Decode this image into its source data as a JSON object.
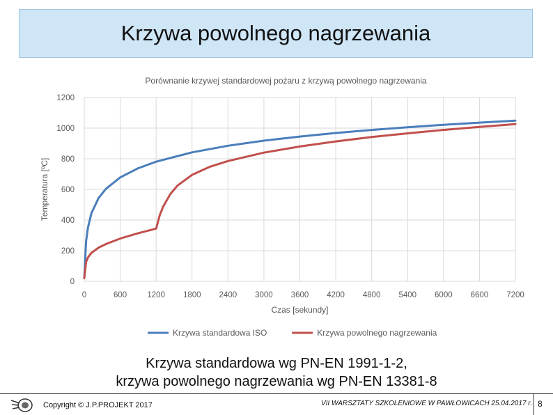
{
  "slide_title": "Krzywa powolnego nagrzewania",
  "caption": {
    "line1": "Krzywa standardowa wg PN-EN 1991-1-2,",
    "line2": "krzywa powolnego nagrzewania wg PN-EN 13381-8"
  },
  "footer": {
    "copyright": "Copyright © J.P.PROJEKT 2017",
    "workshop": "VII WARSZTATY SZKOLENIOWE W PAWŁOWICACH 25.04.2017 r.",
    "page_number": "8"
  },
  "chart_data": {
    "type": "line",
    "title": "Porównanie krzywej standardowej pożaru z krzywą powolnego nagrzewania",
    "xlabel": "Czas [sekundy]",
    "ylabel": "Temperatura [ºC]",
    "xlim": [
      0,
      7200
    ],
    "ylim": [
      0,
      1200
    ],
    "x_ticks": [
      0,
      600,
      1200,
      1800,
      2400,
      3000,
      3600,
      4200,
      4800,
      5400,
      6000,
      6600,
      7200
    ],
    "y_ticks": [
      0,
      200,
      400,
      600,
      800,
      1000,
      1200
    ],
    "grid": true,
    "legend_position": "bottom",
    "series": [
      {
        "name": "Krzywa standardowa ISO",
        "color": "#4a7ebb",
        "x": [
          0,
          30,
          60,
          120,
          240,
          360,
          600,
          900,
          1200,
          1800,
          2400,
          3000,
          3600,
          4200,
          4800,
          5400,
          6000,
          6600,
          7200
        ],
        "y": [
          20,
          261,
          349,
          445,
          544,
          603,
          678,
          738,
          781,
          842,
          885,
          918,
          945,
          968,
          988,
          1006,
          1022,
          1036,
          1049
        ]
      },
      {
        "name": "Krzywa powolnego nagrzewania",
        "color": "#c0504d",
        "x": [
          0,
          30,
          60,
          120,
          240,
          360,
          600,
          900,
          1200,
          1260,
          1320,
          1440,
          1560,
          1800,
          2100,
          2400,
          3000,
          3600,
          4200,
          4800,
          5400,
          6000,
          6600,
          7200
        ],
        "y": [
          20,
          125,
          155,
          186,
          220,
          243,
          279,
          314,
          344,
          431,
          490,
          571,
          626,
          695,
          748,
          785,
          840,
          880,
          913,
          942,
          966,
          988,
          1008,
          1026
        ]
      }
    ]
  }
}
